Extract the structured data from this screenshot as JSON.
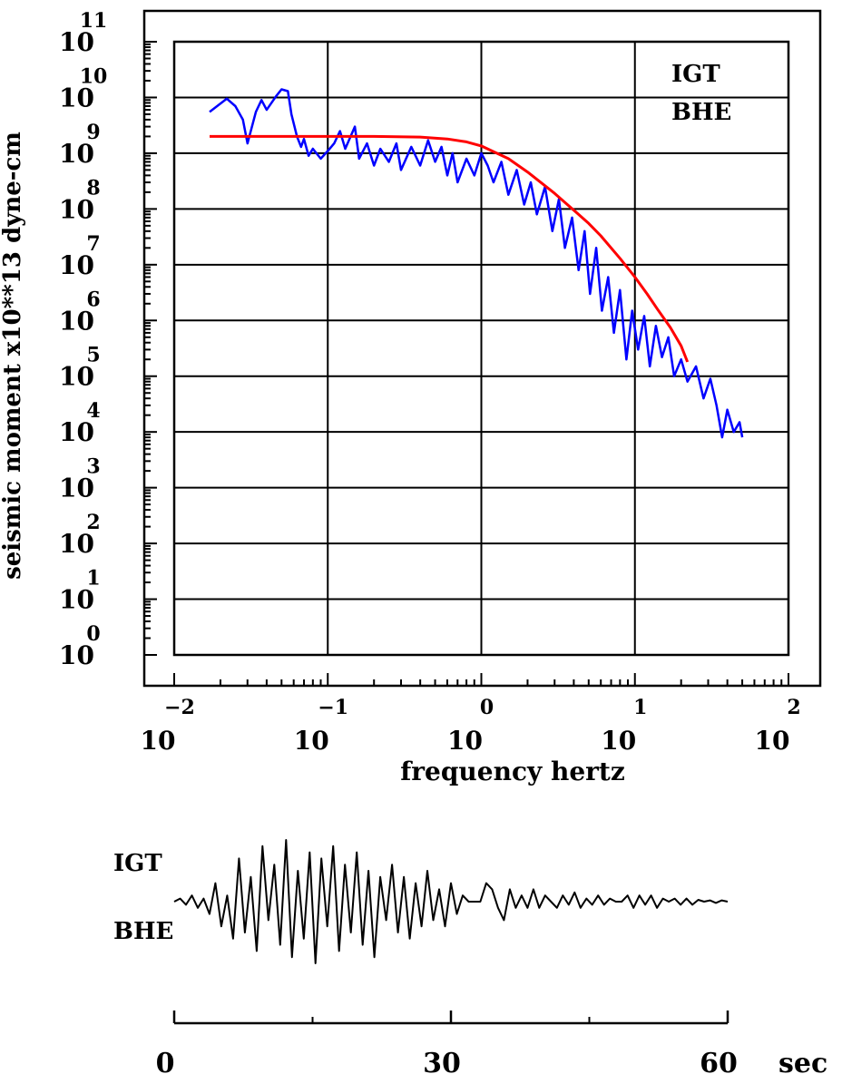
{
  "chart_data": [
    {
      "type": "line",
      "title": "",
      "xlabel": "frequency hertz",
      "ylabel": "seismic moment x10**13 dyne-cm",
      "x_scale": "log",
      "y_scale": "log",
      "xlim": [
        0.01,
        100
      ],
      "ylim": [
        1,
        100000000000
      ],
      "grid": true,
      "annotations": [
        "IGT",
        "BHE"
      ],
      "x_ticks": [
        {
          "base": "10",
          "exp": "-2"
        },
        {
          "base": "10",
          "exp": "-1"
        },
        {
          "base": "10",
          "exp": "0"
        },
        {
          "base": "10",
          "exp": "1"
        },
        {
          "base": "10",
          "exp": "2"
        }
      ],
      "y_ticks": [
        {
          "base": "10",
          "exp": "11"
        },
        {
          "base": "10",
          "exp": "10"
        },
        {
          "base": "10",
          "exp": "9"
        },
        {
          "base": "10",
          "exp": "8"
        },
        {
          "base": "10",
          "exp": "7"
        },
        {
          "base": "10",
          "exp": "6"
        },
        {
          "base": "10",
          "exp": "5"
        },
        {
          "base": "10",
          "exp": "4"
        },
        {
          "base": "10",
          "exp": "3"
        },
        {
          "base": "10",
          "exp": "2"
        },
        {
          "base": "10",
          "exp": "1"
        },
        {
          "base": "10",
          "exp": "0"
        }
      ],
      "series": [
        {
          "color": "#0000ff",
          "points": [
            [
              0.017,
              5500000000
            ],
            [
              0.022,
              9500000000
            ],
            [
              0.025,
              7000000000
            ],
            [
              0.028,
              4000000000
            ],
            [
              0.03,
              1500000000
            ],
            [
              0.034,
              5500000000
            ],
            [
              0.037,
              9000000000
            ],
            [
              0.04,
              6000000000
            ],
            [
              0.046,
              10500000000
            ],
            [
              0.05,
              14000000000
            ],
            [
              0.055,
              13000000000
            ],
            [
              0.058,
              5000000000
            ],
            [
              0.063,
              2000000000
            ],
            [
              0.067,
              1300000000
            ],
            [
              0.07,
              1800000000
            ],
            [
              0.075,
              900000000
            ],
            [
              0.08,
              1200000000
            ],
            [
              0.09,
              800000000
            ],
            [
              0.1,
              1100000000
            ],
            [
              0.11,
              1500000000
            ],
            [
              0.12,
              2500000000
            ],
            [
              0.13,
              1200000000
            ],
            [
              0.15,
              3000000000
            ],
            [
              0.16,
              800000000
            ],
            [
              0.18,
              1500000000
            ],
            [
              0.2,
              600000000
            ],
            [
              0.22,
              1200000000
            ],
            [
              0.25,
              700000000
            ],
            [
              0.28,
              1500000000
            ],
            [
              0.3,
              500000000
            ],
            [
              0.35,
              1300000000
            ],
            [
              0.4,
              600000000
            ],
            [
              0.45,
              1700000000
            ],
            [
              0.5,
              700000000
            ],
            [
              0.55,
              1300000000
            ],
            [
              0.6,
              400000000
            ],
            [
              0.65,
              1000000000
            ],
            [
              0.7,
              300000000
            ],
            [
              0.8,
              800000000
            ],
            [
              0.9,
              400000000
            ],
            [
              1.0,
              1000000000
            ],
            [
              1.1,
              600000000
            ],
            [
              1.2,
              300000000
            ],
            [
              1.35,
              700000000
            ],
            [
              1.5,
              180000000
            ],
            [
              1.7,
              500000000
            ],
            [
              1.9,
              120000000
            ],
            [
              2.1,
              300000000
            ],
            [
              2.3,
              80000000
            ],
            [
              2.6,
              250000000
            ],
            [
              2.9,
              40000000
            ],
            [
              3.2,
              150000000
            ],
            [
              3.5,
              20000000
            ],
            [
              3.9,
              70000000
            ],
            [
              4.3,
              8000000
            ],
            [
              4.7,
              40000000
            ],
            [
              5.1,
              3000000
            ],
            [
              5.6,
              20000000
            ],
            [
              6.1,
              1500000
            ],
            [
              6.7,
              6000000
            ],
            [
              7.3,
              600000
            ],
            [
              8.0,
              3500000
            ],
            [
              8.8,
              200000
            ],
            [
              9.6,
              1500000
            ],
            [
              10.5,
              300000
            ],
            [
              11.5,
              1200000
            ],
            [
              12.5,
              150000
            ],
            [
              13.7,
              800000
            ],
            [
              15.0,
              220000
            ],
            [
              16.5,
              500000
            ],
            [
              18.0,
              100000
            ],
            [
              20.0,
              200000
            ],
            [
              22.0,
              80000
            ],
            [
              25.0,
              150000
            ],
            [
              28.0,
              40000
            ],
            [
              31.0,
              90000
            ],
            [
              34.0,
              30000
            ],
            [
              37.0,
              8000
            ],
            [
              40.0,
              25000
            ],
            [
              44.0,
              10000
            ],
            [
              48.0,
              15000
            ],
            [
              50.0,
              8000
            ]
          ]
        },
        {
          "color": "#ff0000",
          "points": [
            [
              0.017,
              2000000000
            ],
            [
              0.03,
              2000000000
            ],
            [
              0.05,
              2000000000
            ],
            [
              0.1,
              2000000000
            ],
            [
              0.2,
              2000000000
            ],
            [
              0.4,
              1950000000
            ],
            [
              0.6,
              1800000000
            ],
            [
              0.8,
              1600000000
            ],
            [
              1.0,
              1350000000
            ],
            [
              1.5,
              800000000
            ],
            [
              2.0,
              460000000
            ],
            [
              3.0,
              190000000
            ],
            [
              4.0,
              95000000
            ],
            [
              5.0,
              55000000
            ],
            [
              6.0,
              33000000
            ],
            [
              8.0,
              13000000
            ],
            [
              10.0,
              6000000
            ],
            [
              12.0,
              3000000
            ],
            [
              14.0,
              1600000
            ],
            [
              17.0,
              750000
            ],
            [
              20.0,
              350000
            ],
            [
              22.0,
              180000
            ]
          ]
        }
      ]
    },
    {
      "type": "line",
      "title": "",
      "xlabel": "",
      "x_unit": "sec",
      "xlim": [
        0,
        60
      ],
      "annotations": [
        "IGT",
        "BHE"
      ],
      "x_ticks": [
        "0",
        "30",
        "60"
      ],
      "minor_ticks": [
        15,
        45
      ],
      "color": "#000000",
      "samples_start": 0,
      "samples_end": 60,
      "amplitude": [
        0,
        0.05,
        -0.05,
        0.1,
        -0.1,
        0.05,
        -0.2,
        0.3,
        -0.4,
        0.1,
        -0.6,
        0.7,
        -0.5,
        0.4,
        -0.8,
        0.9,
        -0.3,
        0.6,
        -0.7,
        1.0,
        -0.9,
        0.5,
        -0.6,
        0.8,
        -1.0,
        0.7,
        -0.4,
        0.9,
        -0.8,
        0.6,
        -0.5,
        0.8,
        -0.7,
        0.5,
        -0.9,
        0.4,
        -0.3,
        0.6,
        -0.5,
        0.4,
        -0.6,
        0.3,
        -0.4,
        0.5,
        -0.3,
        0.2,
        -0.4,
        0.3,
        -0.2,
        0.1,
        0,
        0,
        0,
        0.3,
        0.2,
        -0.1,
        -0.3,
        0.2,
        -0.1,
        0.1,
        -0.1,
        0.2,
        -0.1,
        0.1,
        0,
        -0.1,
        0.1,
        -0.05,
        0.15,
        -0.1,
        0.05,
        -0.05,
        0.1,
        -0.05,
        0.05,
        0,
        0,
        0.1,
        -0.1,
        0.1,
        -0.05,
        0.1,
        -0.1,
        0.05,
        0,
        0.05,
        -0.05,
        0.05,
        -0.05,
        0.03,
        0,
        0.02,
        -0.02,
        0.02,
        0
      ]
    }
  ]
}
